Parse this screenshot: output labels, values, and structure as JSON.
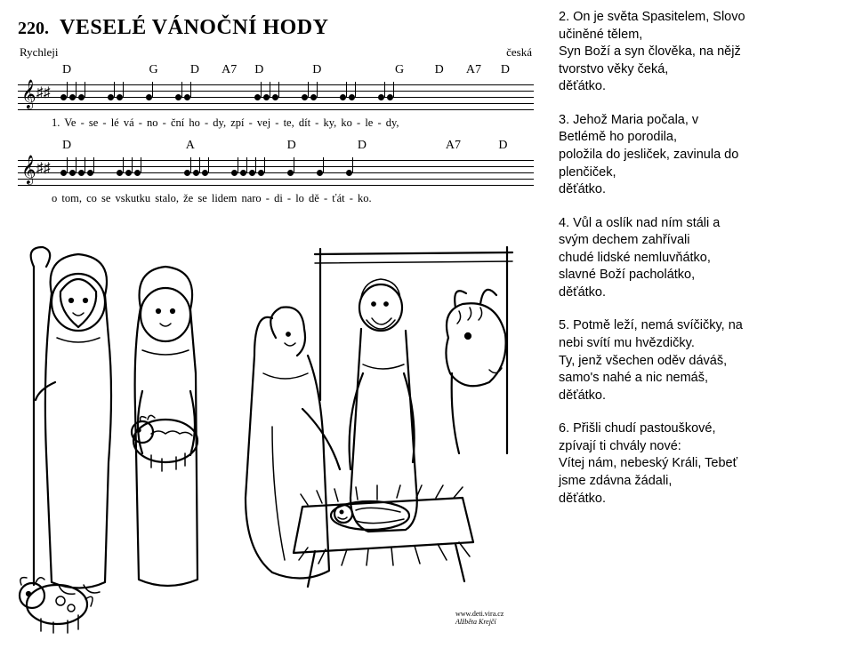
{
  "song": {
    "number": "220.",
    "title": "VESELÉ VÁNOČNÍ HODY",
    "tempo": "Rychleji",
    "origin": "česká",
    "chords_line1": [
      "D",
      "G",
      "D",
      "A7",
      "D",
      "D",
      "G",
      "D",
      "A7",
      "D"
    ],
    "chords_line1_widths": [
      105,
      50,
      38,
      40,
      70,
      100,
      48,
      38,
      42,
      0
    ],
    "lyrics_line1": "1. Ve - se - lé   vá - no   -   ční   ho - dy,       zpí - vej - te,   dít - ky,   ko - le  -  dy,",
    "chords_line2": [
      "D",
      "A",
      "D",
      "D",
      "A7",
      "D"
    ],
    "chords_line2_widths": [
      140,
      115,
      80,
      100,
      60,
      0
    ],
    "lyrics_line2": "o   tom, co   se   vskutku   stalo,    že   se   lidem       naro  -  di - lo   dě  -  ťát  -  ko."
  },
  "verses": [
    {
      "n": "2.",
      "lines": [
        "On je světa Spasitelem, Slovo",
        "učiněné tělem,",
        "Syn Boží a syn člověka, na nějž",
        "tvorstvo věky čeká,",
        "děťátko."
      ]
    },
    {
      "n": "3.",
      "lines": [
        "Jehož Maria počala, v",
        "Betlémě ho porodila,",
        "položila do jesliček, zavinula do",
        "plenčiček,",
        "děťátko."
      ]
    },
    {
      "n": "4.",
      "lines": [
        "Vůl a oslík nad ním stáli a",
        "svým dechem zahřívali",
        "chudé lidské nemluvňátko,",
        "slavné Boží pacholátko,",
        "děťátko."
      ]
    },
    {
      "n": "5.",
      "lines": [
        "Potmě leží, nemá svíčičky, na",
        "nebi svítí mu hvězdičky.",
        "Ty, jenž všechen oděv dáváš,",
        "samo's nahé a nic nemáš,",
        "děťátko."
      ]
    },
    {
      "n": "6.",
      "lines": [
        "Přišli chudí pastouškové,",
        "zpívají ti chvály nové:",
        "Vítej nám, nebeský Králi, Tebeť",
        "jsme zdávna žádali,",
        "děťátko."
      ]
    }
  ],
  "credit": {
    "l1": "www.deti.vira.cz",
    "l2": "Alžběta Krejčí"
  },
  "colors": {
    "bg": "#ffffff",
    "fg": "#000000"
  }
}
